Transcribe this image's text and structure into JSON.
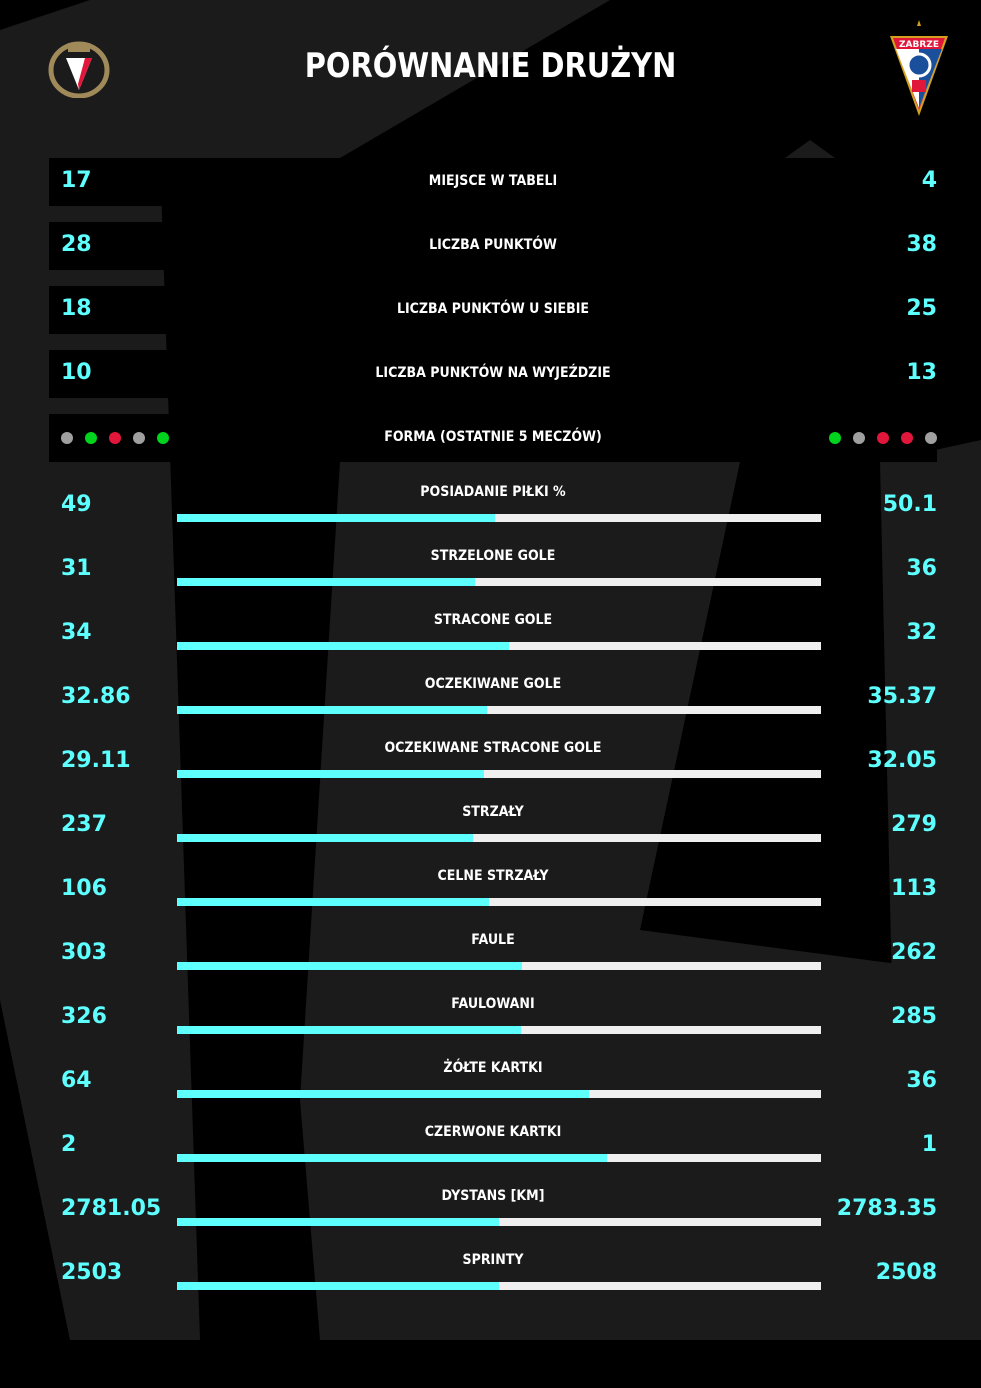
{
  "title": "PORÓWNANIE DRUŻYN",
  "home_team": {
    "logo": "widzew-crest",
    "logo_text": "1910"
  },
  "away_team": {
    "logo": "gornik-zabrze-crest",
    "logo_text": "ZABRZE"
  },
  "colors": {
    "accent": "#5effff",
    "win": "#00d41c",
    "draw": "#a0a0a0",
    "loss": "#e0173a",
    "bar_bg": "#efefef"
  },
  "table_rows": [
    {
      "label": "MIEJSCE W TABELI",
      "home": "17",
      "away": "4"
    },
    {
      "label": "LICZBA PUNKTÓW",
      "home": "28",
      "away": "38"
    },
    {
      "label": "LICZBA PUNKTÓW U SIEBIE",
      "home": "18",
      "away": "25"
    },
    {
      "label": "LICZBA PUNKTÓW NA WYJEŹDZIE",
      "home": "10",
      "away": "13"
    }
  ],
  "form": {
    "label": "FORMA (OSTATNIE 5 MECZÓW)",
    "home": [
      "D",
      "W",
      "L",
      "D",
      "W"
    ],
    "away": [
      "W",
      "D",
      "L",
      "L",
      "D"
    ]
  },
  "stats": [
    {
      "label": "POSIADANIE PIŁKI %",
      "home": "49",
      "away": "50.1",
      "home_share": 0.494
    },
    {
      "label": "STRZELONE GOLE",
      "home": "31",
      "away": "36",
      "home_share": 0.463
    },
    {
      "label": "STRACONE GOLE",
      "home": "34",
      "away": "32",
      "home_share": 0.515
    },
    {
      "label": "OCZEKIWANE GOLE",
      "home": "32.86",
      "away": "35.37",
      "home_share": 0.482
    },
    {
      "label": "OCZEKIWANE STRACONE GOLE",
      "home": "29.11",
      "away": "32.05",
      "home_share": 0.476
    },
    {
      "label": "STRZAŁY",
      "home": "237",
      "away": "279",
      "home_share": 0.459
    },
    {
      "label": "CELNE STRZAŁY",
      "home": "106",
      "away": "113",
      "home_share": 0.484
    },
    {
      "label": "FAULE",
      "home": "303",
      "away": "262",
      "home_share": 0.536
    },
    {
      "label": "FAULOWANI",
      "home": "326",
      "away": "285",
      "home_share": 0.534
    },
    {
      "label": "ŻÓŁTE KARTKI",
      "home": "64",
      "away": "36",
      "home_share": 0.64
    },
    {
      "label": "CZERWONE KARTKI",
      "home": "2",
      "away": "1",
      "home_share": 0.667
    },
    {
      "label": "DYSTANS [KM]",
      "home": "2781.05",
      "away": "2783.35",
      "home_share": 0.5
    },
    {
      "label": "SPRINTY",
      "home": "2503",
      "away": "2508",
      "home_share": 0.5
    }
  ]
}
